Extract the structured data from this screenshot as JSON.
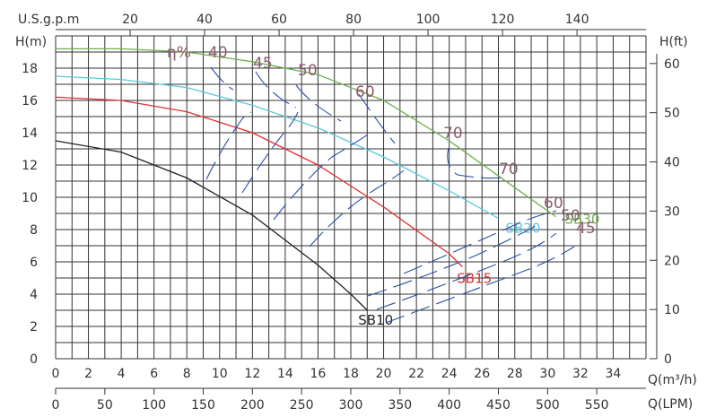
{
  "chart_data": {
    "type": "line",
    "axes": {
      "bottom": {
        "label": "Q(m³/h)",
        "ticks": [
          0,
          2,
          4,
          6,
          8,
          10,
          12,
          14,
          16,
          18,
          20,
          22,
          24,
          26,
          28,
          30,
          32,
          34
        ],
        "range": [
          0,
          36
        ]
      },
      "bottom2": {
        "label": "Q(LPM)",
        "ticks": [
          0,
          50,
          100,
          150,
          200,
          250,
          300,
          350,
          400,
          450,
          500,
          550
        ]
      },
      "top": {
        "label": "U.S.g.p.m",
        "ticks": [
          20,
          40,
          60,
          80,
          100,
          120,
          140
        ]
      },
      "left": {
        "label": "H(m)",
        "ticks": [
          0,
          2,
          4,
          6,
          8,
          10,
          12,
          14,
          16,
          18
        ],
        "range": [
          0,
          20
        ]
      },
      "right": {
        "label": "H(ft)",
        "ticks": [
          0,
          10,
          20,
          30,
          40,
          50,
          60
        ]
      }
    },
    "grid": true,
    "series": [
      {
        "name": "SB10",
        "color": "#222222",
        "x": [
          0,
          4,
          8,
          12,
          16,
          18,
          19
        ],
        "y": [
          13.5,
          12.8,
          11.2,
          8.9,
          5.8,
          4.0,
          3.0
        ]
      },
      {
        "name": "SB15",
        "color": "#e03030",
        "x": [
          0,
          4,
          8,
          12,
          16,
          20,
          24,
          24.8
        ],
        "y": [
          16.2,
          16.0,
          15.3,
          14.0,
          12.0,
          9.4,
          6.5,
          5.7
        ]
      },
      {
        "name": "SB20",
        "color": "#5cc8dc",
        "x": [
          0,
          4,
          8,
          12,
          16,
          20,
          24,
          27
        ],
        "y": [
          17.5,
          17.3,
          16.8,
          15.7,
          14.3,
          12.5,
          10.4,
          8.7
        ]
      },
      {
        "name": "SB30",
        "color": "#6cb04a",
        "x": [
          0,
          4,
          8,
          12,
          16,
          20,
          24,
          28,
          30.5
        ],
        "y": [
          19.2,
          19.2,
          19.0,
          18.4,
          17.6,
          16.0,
          13.5,
          10.6,
          8.8
        ]
      }
    ],
    "efficiency_label": "η%",
    "efficiency_values": [
      "40",
      "45",
      "50",
      "60",
      "70",
      "70",
      "60",
      "50",
      "45"
    ]
  }
}
